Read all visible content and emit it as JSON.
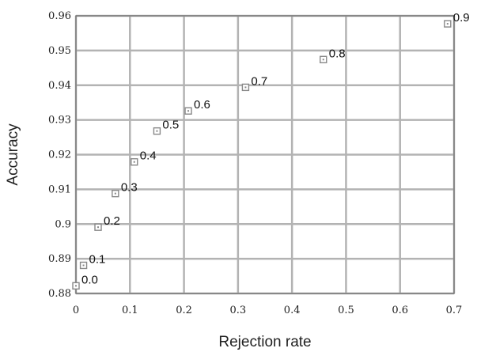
{
  "chart_data": {
    "type": "scatter",
    "title": "",
    "xlabel": "Rejection rate",
    "ylabel": "Accuracy",
    "xlim": [
      0,
      0.7
    ],
    "ylim": [
      0.88,
      0.96
    ],
    "x_ticks": [
      "0",
      "0.1",
      "0.2",
      "0.3",
      "0.4",
      "0.5",
      "0.6",
      "0.7"
    ],
    "y_ticks": [
      "0.88",
      "0.89",
      "0.9",
      "0.91",
      "0.92",
      "0.93",
      "0.94",
      "0.95",
      "0.96"
    ],
    "grid": true,
    "marker_color": "#888888",
    "grid_color": "#b3b3b3",
    "series": [
      {
        "points": [
          {
            "x": 0.0,
            "y": 0.8822,
            "label": "0.0"
          },
          {
            "x": 0.014,
            "y": 0.8881,
            "label": "0.1"
          },
          {
            "x": 0.041,
            "y": 0.8991,
            "label": "0.2"
          },
          {
            "x": 0.073,
            "y": 0.9088,
            "label": "0.3"
          },
          {
            "x": 0.108,
            "y": 0.9179,
            "label": "0.4"
          },
          {
            "x": 0.15,
            "y": 0.9268,
            "label": "0.5"
          },
          {
            "x": 0.208,
            "y": 0.9326,
            "label": "0.6"
          },
          {
            "x": 0.314,
            "y": 0.9394,
            "label": "0.7"
          },
          {
            "x": 0.458,
            "y": 0.9474,
            "label": "0.8"
          },
          {
            "x": 0.688,
            "y": 0.9577,
            "label": "0.9"
          }
        ]
      }
    ]
  }
}
